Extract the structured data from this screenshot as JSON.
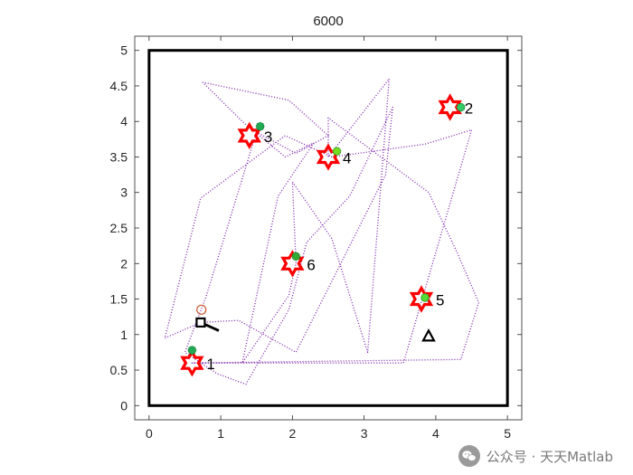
{
  "chart_data": {
    "type": "scatter",
    "title": "6000",
    "xlim": [
      -0.2,
      5.2
    ],
    "ylim": [
      -0.2,
      5.2
    ],
    "xticks": [
      "0",
      "1",
      "2",
      "3",
      "4",
      "5"
    ],
    "yticks": [
      "0",
      "0.5",
      "1",
      "1.5",
      "2",
      "2.5",
      "3",
      "3.5",
      "4",
      "4.5",
      "5"
    ],
    "xtick_values": [
      0,
      1,
      2,
      3,
      4,
      5
    ],
    "ytick_values": [
      0,
      0.5,
      1,
      1.5,
      2,
      2.5,
      3,
      3.5,
      4,
      4.5,
      5
    ],
    "grid": false,
    "boundary": [
      0,
      5,
      0,
      5
    ],
    "targets": [
      {
        "label": "1",
        "x": 0.6,
        "y": 0.6
      },
      {
        "label": "2",
        "x": 4.2,
        "y": 4.2
      },
      {
        "label": "3",
        "x": 1.4,
        "y": 3.8
      },
      {
        "label": "4",
        "x": 2.5,
        "y": 3.5
      },
      {
        "label": "5",
        "x": 3.8,
        "y": 1.5
      },
      {
        "label": "6",
        "x": 2.0,
        "y": 2.0
      }
    ],
    "green_markers": [
      {
        "x": 0.6,
        "y": 0.78,
        "color": "#22aa55"
      },
      {
        "x": 4.35,
        "y": 4.2,
        "color": "#33cc66"
      },
      {
        "x": 1.55,
        "y": 3.93,
        "color": "#22aa55"
      },
      {
        "x": 2.62,
        "y": 3.58,
        "color": "#77dd22"
      },
      {
        "x": 3.85,
        "y": 1.52,
        "color": "#55dd33"
      },
      {
        "x": 2.05,
        "y": 2.1,
        "color": "#33aa33"
      }
    ],
    "path": [
      [
        0.72,
        1.17
      ],
      [
        0.22,
        0.95
      ],
      [
        0.72,
        2.92
      ],
      [
        1.9,
        3.8
      ],
      [
        2.55,
        3.5
      ],
      [
        3.85,
        3.68
      ],
      [
        4.5,
        3.88
      ],
      [
        3.55,
        0.6
      ],
      [
        0.6,
        0.6
      ],
      [
        4.35,
        0.65
      ],
      [
        4.6,
        1.45
      ],
      [
        4.3,
        2.15
      ],
      [
        3.9,
        3.0
      ],
      [
        2.5,
        4.05
      ],
      [
        2.5,
        3.5
      ],
      [
        3.35,
        4.6
      ],
      [
        3.05,
        0.75
      ],
      [
        2.55,
        2.35
      ],
      [
        2.0,
        3.15
      ],
      [
        2.05,
        2.0
      ],
      [
        1.95,
        1.55
      ],
      [
        1.3,
        0.6
      ],
      [
        1.8,
        2.95
      ],
      [
        2.3,
        3.7
      ],
      [
        1.9,
        3.5
      ],
      [
        1.3,
        4.0
      ],
      [
        0.75,
        4.55
      ],
      [
        1.95,
        4.3
      ],
      [
        2.5,
        3.8
      ],
      [
        2.05,
        3.55
      ],
      [
        1.5,
        3.85
      ],
      [
        0.8,
        1.55
      ],
      [
        0.5,
        0.75
      ],
      [
        0.95,
        0.45
      ],
      [
        1.35,
        0.3
      ],
      [
        1.95,
        1.35
      ],
      [
        2.2,
        2.3
      ],
      [
        2.8,
        2.95
      ],
      [
        3.4,
        4.2
      ],
      [
        3.3,
        3.25
      ],
      [
        2.05,
        0.75
      ],
      [
        1.25,
        1.2
      ],
      [
        0.72,
        1.17
      ]
    ],
    "path_color": "#7a22aa",
    "start_marker": {
      "type": "circle",
      "x": 0.73,
      "y": 1.35,
      "color": "#cc5533"
    },
    "agent": {
      "type": "square",
      "x": 0.72,
      "y": 1.17,
      "heading": [
        1.0,
        -0.45
      ],
      "color": "#000000"
    },
    "goal": {
      "type": "triangle",
      "x": 3.9,
      "y": 0.98,
      "color": "#000000"
    }
  },
  "watermark": {
    "text": "公众号 · 天天Matlab",
    "icon": "wechat-icon"
  }
}
